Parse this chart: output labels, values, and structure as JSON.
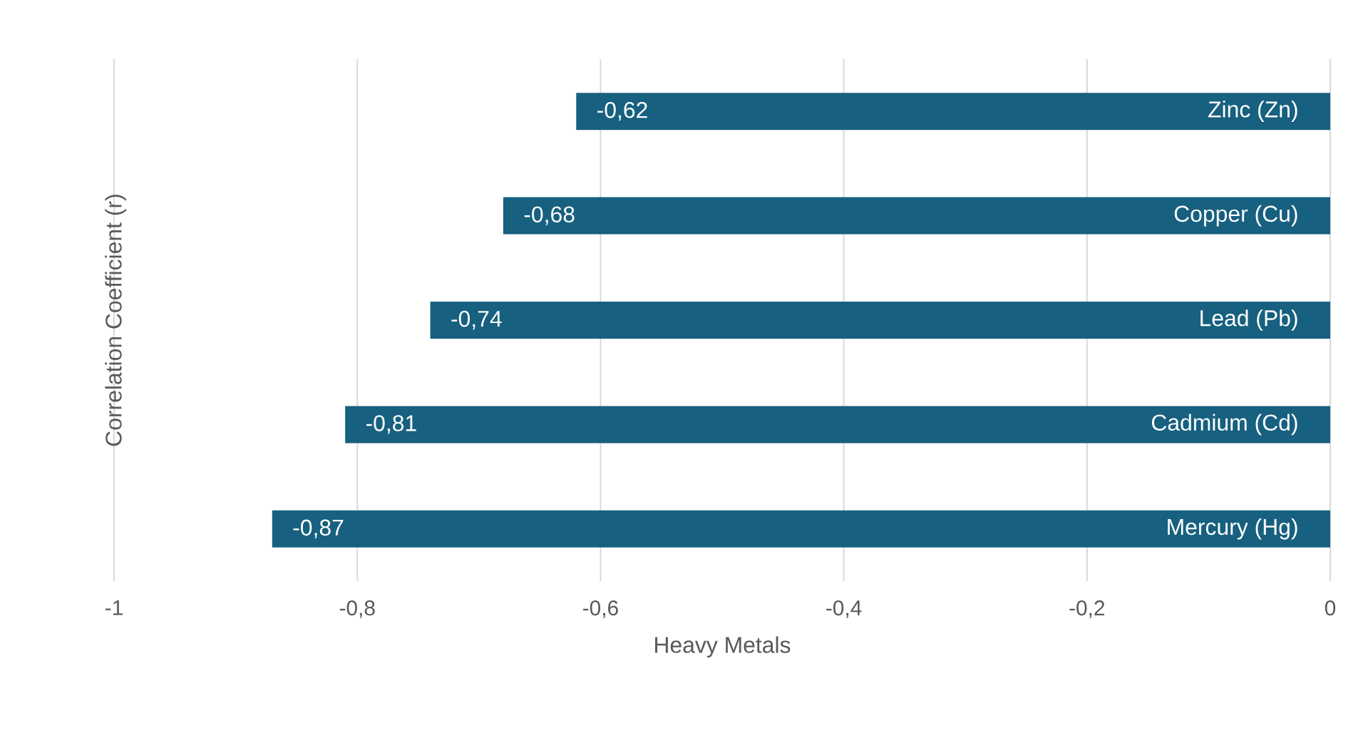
{
  "chart_data": {
    "type": "bar",
    "orientation": "horizontal",
    "xlabel": "Heavy Metals",
    "ylabel": "Correlation Coefficient (r)",
    "categories": [
      "Zinc (Zn)",
      "Copper (Cu)",
      "Lead (Pb)",
      "Cadmium (Cd)",
      "Mercury (Hg)"
    ],
    "values": [
      -0.62,
      -0.68,
      -0.74,
      -0.81,
      -0.87
    ],
    "value_labels": [
      "-0,62",
      "-0,68",
      "-0,74",
      "-0,81",
      "-0,87"
    ],
    "color": "#17607f",
    "xlim": [
      -1,
      0
    ],
    "xticks": [
      {
        "value": -1,
        "label": "-1"
      },
      {
        "value": -0.8,
        "label": "-0,8"
      },
      {
        "value": -0.6,
        "label": "-0,6"
      },
      {
        "value": -0.4,
        "label": "-0,4"
      },
      {
        "value": -0.2,
        "label": "-0,2"
      },
      {
        "value": 0,
        "label": "0"
      }
    ],
    "grid": "x"
  }
}
